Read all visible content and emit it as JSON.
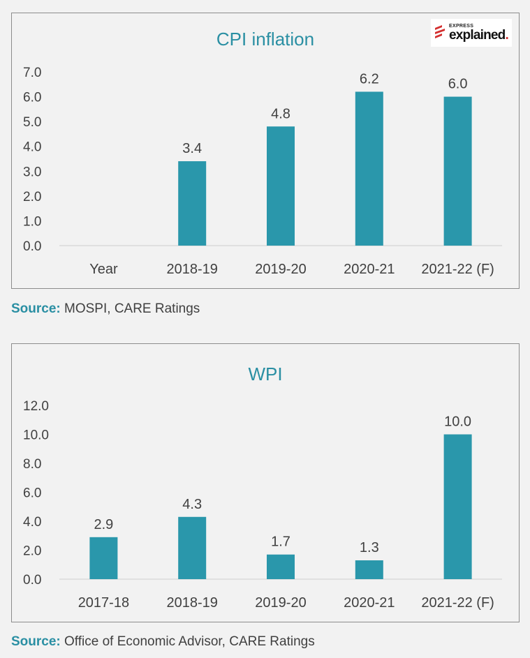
{
  "logo": {
    "small": "EXPRESS",
    "big": "explained",
    "dot": "."
  },
  "colors": {
    "bar": "#2a97ab",
    "title": "#2a8fa3",
    "axis": "#d9d9d9",
    "text": "#404040"
  },
  "chart_data": [
    {
      "type": "bar",
      "title": "CPI inflation",
      "categories": [
        "Year",
        "2018-19",
        "2019-20",
        "2020-21",
        "2021-22 (F)"
      ],
      "values": [
        null,
        3.4,
        4.8,
        6.2,
        6.0
      ],
      "data_labels": [
        "",
        "3.4",
        "4.8",
        "6.2",
        "6.0"
      ],
      "y_ticks": [
        "0.0",
        "1.0",
        "2.0",
        "3.0",
        "4.0",
        "5.0",
        "6.0",
        "7.0"
      ],
      "ylim": [
        0,
        7
      ],
      "grid": false,
      "legend": "none"
    },
    {
      "type": "bar",
      "title": "WPI",
      "categories": [
        "2017-18",
        "2018-19",
        "2019-20",
        "2020-21",
        "2021-22 (F)"
      ],
      "values": [
        2.9,
        4.3,
        1.7,
        1.3,
        10.0
      ],
      "data_labels": [
        "2.9",
        "4.3",
        "1.7",
        "1.3",
        "10.0"
      ],
      "y_ticks": [
        "0.0",
        "2.0",
        "4.0",
        "6.0",
        "8.0",
        "10.0",
        "12.0"
      ],
      "ylim": [
        0,
        12
      ],
      "grid": false,
      "legend": "none"
    }
  ],
  "sources": [
    {
      "label": "Source:",
      "text": " MOSPI, CARE Ratings"
    },
    {
      "label": "Source:",
      "text": " Office of Economic Advisor, CARE Ratings"
    }
  ]
}
